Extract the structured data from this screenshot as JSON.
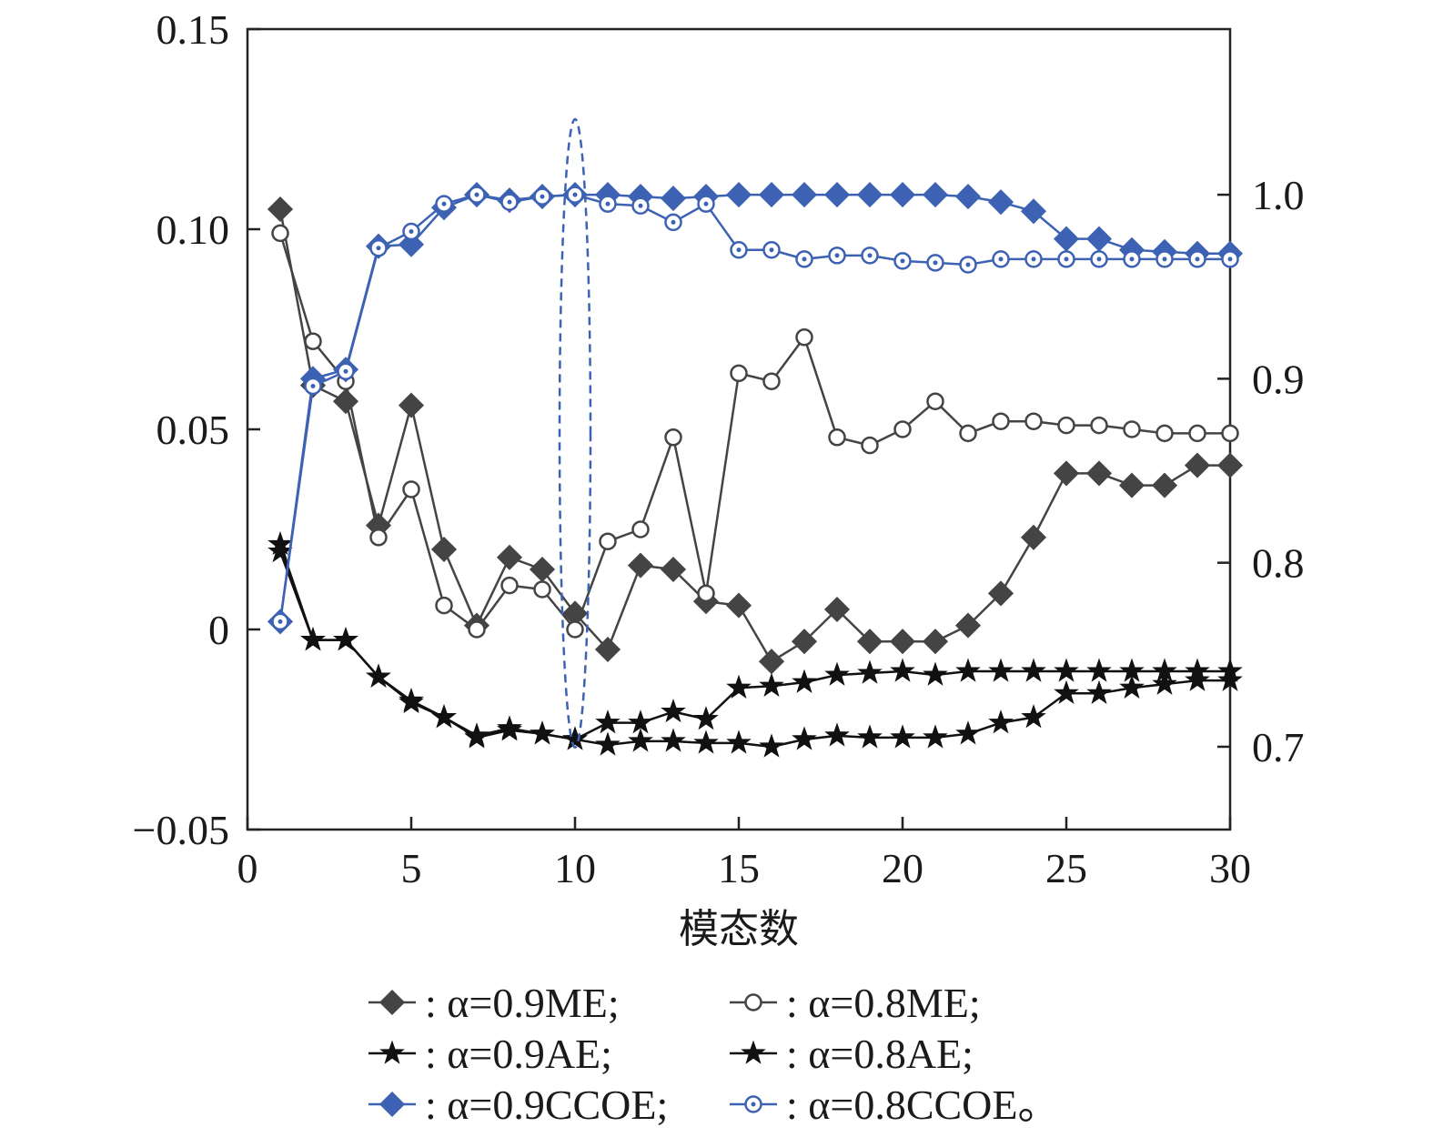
{
  "chart_data": {
    "type": "line",
    "xlabel": "模态数",
    "x": [
      1,
      2,
      3,
      4,
      5,
      6,
      7,
      8,
      9,
      10,
      11,
      12,
      13,
      14,
      15,
      16,
      17,
      18,
      19,
      20,
      21,
      22,
      23,
      24,
      25,
      26,
      27,
      28,
      29,
      30
    ],
    "xlim": [
      0,
      30
    ],
    "xticks": [
      0,
      5,
      10,
      15,
      20,
      25,
      30
    ],
    "xtick_labels": [
      "0",
      "5",
      "10",
      "15",
      "20",
      "25",
      "30"
    ],
    "y_left": {
      "ylim": [
        -0.05,
        0.15
      ],
      "ticks": [
        -0.05,
        0,
        0.05,
        0.1,
        0.15
      ],
      "tick_labels": [
        "−0.05",
        "0",
        "0.05",
        "0.10",
        "0.15"
      ]
    },
    "y_right": {
      "ylim": [
        0.655,
        1.09
      ],
      "ticks": [
        0.7,
        0.8,
        0.9,
        1.0
      ],
      "tick_labels": [
        "0.7",
        "0.8",
        "0.9",
        "1.0"
      ]
    },
    "series": [
      {
        "legend": ": α=0.9ME;",
        "axis": "left",
        "color": "#444444",
        "marker": "diamond",
        "fill": "#444444",
        "values": [
          0.105,
          0.061,
          0.057,
          0.026,
          0.056,
          0.02,
          0.001,
          0.018,
          0.015,
          0.004,
          -0.005,
          0.016,
          0.015,
          0.007,
          0.006,
          -0.008,
          -0.003,
          0.005,
          -0.003,
          -0.003,
          -0.003,
          0.001,
          0.009,
          0.023,
          0.039,
          0.039,
          0.036,
          0.036,
          0.041,
          0.041
        ]
      },
      {
        "legend": ": α=0.8ME;",
        "axis": "left",
        "color": "#444444",
        "marker": "circle",
        "fill": "#ffffff",
        "values": [
          0.099,
          0.072,
          0.062,
          0.023,
          0.035,
          0.006,
          0.0,
          0.011,
          0.01,
          0.0,
          0.022,
          0.025,
          0.048,
          0.009,
          0.064,
          0.062,
          0.073,
          0.048,
          0.046,
          0.05,
          0.057,
          0.049,
          0.052,
          0.052,
          0.051,
          0.051,
          0.05,
          0.049,
          0.049,
          0.049
        ]
      },
      {
        "legend": ": α=0.9AE;",
        "axis": "right",
        "color": "#111111",
        "marker": "star",
        "fill": "#111111",
        "values": [
          0.806,
          0.758,
          0.758,
          0.738,
          0.724,
          0.716,
          0.705,
          0.709,
          0.707,
          0.704,
          0.713,
          0.713,
          0.719,
          0.715,
          0.732,
          0.733,
          0.735,
          0.739,
          0.74,
          0.741,
          0.739,
          0.741,
          0.741,
          0.741,
          0.741,
          0.741,
          0.741,
          0.741,
          0.741,
          0.741
        ]
      },
      {
        "legend": ": α=0.8AE;",
        "axis": "right",
        "color": "#111111",
        "marker": "star",
        "fill": "#111111",
        "values": [
          0.81,
          0.758,
          0.758,
          0.738,
          0.725,
          0.716,
          0.706,
          0.71,
          0.707,
          0.704,
          0.701,
          0.703,
          0.703,
          0.702,
          0.702,
          0.7,
          0.704,
          0.706,
          0.705,
          0.705,
          0.705,
          0.707,
          0.713,
          0.716,
          0.729,
          0.729,
          0.732,
          0.734,
          0.736,
          0.736
        ]
      },
      {
        "legend": ": α=0.9CCOE;",
        "axis": "right",
        "color": "#3d62b3",
        "marker": "diamond",
        "fill": "#3d62b3",
        "values": [
          0.768,
          0.9,
          0.905,
          0.972,
          0.973,
          0.993,
          1.0,
          0.997,
          0.999,
          1.0,
          1.0,
          0.999,
          0.998,
          0.999,
          1.0,
          1.0,
          1.0,
          1.0,
          1.0,
          1.0,
          1.0,
          0.999,
          0.996,
          0.991,
          0.976,
          0.976,
          0.97,
          0.969,
          0.968,
          0.968
        ]
      },
      {
        "legend": ": α=0.8CCOE。",
        "axis": "right",
        "color": "#3d62b3",
        "marker": "circle-dot",
        "fill": "#ffffff",
        "values": [
          0.768,
          0.896,
          0.904,
          0.971,
          0.98,
          0.995,
          1.0,
          0.996,
          0.999,
          1.0,
          0.995,
          0.994,
          0.985,
          0.995,
          0.97,
          0.97,
          0.965,
          0.967,
          0.967,
          0.964,
          0.963,
          0.962,
          0.965,
          0.965,
          0.965,
          0.965,
          0.965,
          0.965,
          0.965,
          0.965
        ]
      }
    ],
    "highlight_ellipse": {
      "x": 10,
      "y_left_range": [
        -0.0295,
        0.1275
      ],
      "color": "#3d62b3",
      "style": "dashed"
    },
    "grid": false,
    "legend_position": "bottom"
  }
}
